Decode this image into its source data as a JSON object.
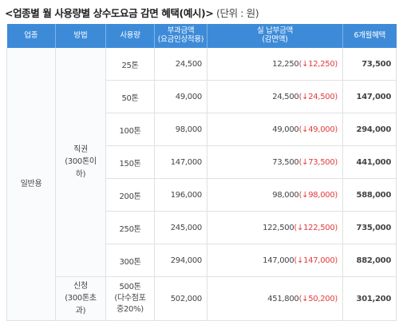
{
  "caption": {
    "title": "<업종별 월 사용량별 상수도요금 감면 혜택(예시)>",
    "unit": "(단위 : 원)"
  },
  "table": {
    "headers": {
      "industry": "업종",
      "method": "방법",
      "usage": "사용량",
      "charge_line1": "부과금액",
      "charge_line2": "(요금인상적용)",
      "actual_line1": "실 납부금액",
      "actual_line2": "(감면액)",
      "benefit": "6개월혜택"
    },
    "industry": "일반용",
    "groups": [
      {
        "method_line1": "직권",
        "method_line2": "(300톤이하)",
        "rows": [
          {
            "usage": "25톤",
            "charge": "24,500",
            "actual": "12,250",
            "discount": "12,250",
            "benefit": "73,500"
          },
          {
            "usage": "50톤",
            "charge": "49,000",
            "actual": "24,500",
            "discount": "24,500",
            "benefit": "147,000"
          },
          {
            "usage": "100톤",
            "charge": "98,000",
            "actual": "49,000",
            "discount": "49,000",
            "benefit": "294,000"
          },
          {
            "usage": "150톤",
            "charge": "147,000",
            "actual": "73,500",
            "discount": "73,500",
            "benefit": "441,000"
          },
          {
            "usage": "200톤",
            "charge": "196,000",
            "actual": "98,000",
            "discount": "98,000",
            "benefit": "588,000"
          },
          {
            "usage": "250톤",
            "charge": "245,000",
            "actual": "122,500",
            "discount": "122,500",
            "benefit": "735,000"
          },
          {
            "usage": "300톤",
            "charge": "294,000",
            "actual": "147,000",
            "discount": "147,000",
            "benefit": "882,000"
          }
        ]
      },
      {
        "method_line1": "신청",
        "method_line2": "(300톤초과)",
        "rows": [
          {
            "usage_line1": "500톤",
            "usage_line2": "(다수점포",
            "usage_line3": "중20%)",
            "charge": "502,000",
            "actual": "451,800",
            "discount": "50,200",
            "benefit": "301,200"
          }
        ]
      }
    ],
    "discount_open": "(",
    "discount_arrow": "↓",
    "discount_close": ")",
    "colors": {
      "header_bg": "#3d8bd8",
      "discount_red": "#e23b3b"
    }
  }
}
